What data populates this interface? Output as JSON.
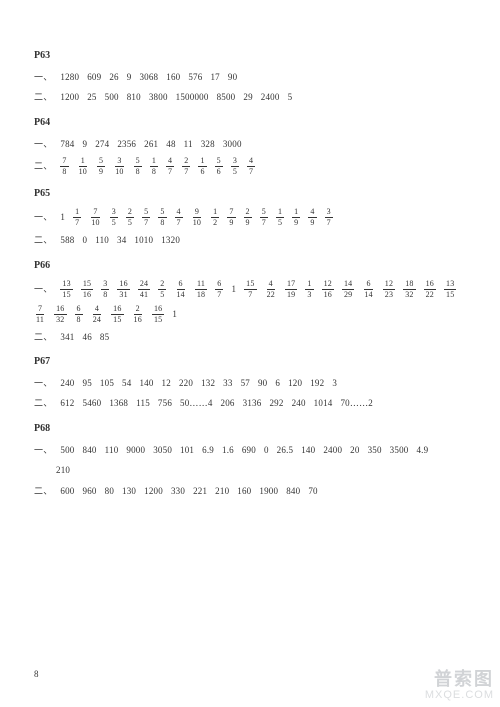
{
  "pageNumber": "8",
  "watermark": {
    "top": "普索图",
    "bottom": "MXQE.COM"
  },
  "sections": [
    {
      "heading": "P63",
      "rows": [
        {
          "prefix": "一、",
          "items": [
            "1280",
            "609",
            "26",
            "9",
            "3068",
            "160",
            "576",
            "17",
            "90"
          ]
        },
        {
          "prefix": "二、",
          "items": [
            "1200",
            "25",
            "500",
            "810",
            "3800",
            "1500000",
            "8500",
            "29",
            "2400",
            "5"
          ]
        }
      ]
    },
    {
      "heading": "P64",
      "rows": [
        {
          "prefix": "一、",
          "items": [
            "784",
            "9",
            "274",
            "2356",
            "261",
            "48",
            "11",
            "328",
            "3000"
          ]
        },
        {
          "prefix": "二、",
          "items": [
            {
              "f": [
                7,
                8
              ]
            },
            {
              "f": [
                1,
                10
              ]
            },
            {
              "f": [
                5,
                9
              ]
            },
            {
              "f": [
                3,
                10
              ]
            },
            {
              "f": [
                5,
                8
              ]
            },
            {
              "f": [
                1,
                8
              ]
            },
            {
              "f": [
                4,
                7
              ]
            },
            {
              "f": [
                2,
                7
              ]
            },
            {
              "f": [
                1,
                6
              ]
            },
            {
              "f": [
                5,
                6
              ]
            },
            {
              "f": [
                3,
                5
              ]
            },
            {
              "f": [
                4,
                7
              ]
            }
          ]
        }
      ]
    },
    {
      "heading": "P65",
      "rows": [
        {
          "prefix": "一、",
          "items": [
            "1",
            {
              "f": [
                1,
                7
              ]
            },
            {
              "f": [
                7,
                10
              ]
            },
            {
              "f": [
                3,
                5
              ]
            },
            {
              "f": [
                2,
                5
              ]
            },
            {
              "f": [
                5,
                7
              ]
            },
            {
              "f": [
                5,
                8
              ]
            },
            {
              "f": [
                4,
                7
              ]
            },
            {
              "f": [
                9,
                10
              ]
            },
            {
              "f": [
                1,
                2
              ]
            },
            {
              "f": [
                7,
                9
              ]
            },
            {
              "f": [
                2,
                9
              ]
            },
            {
              "f": [
                5,
                7
              ]
            },
            {
              "f": [
                1,
                5
              ]
            },
            {
              "f": [
                1,
                9
              ]
            },
            {
              "f": [
                4,
                9
              ]
            },
            {
              "f": [
                3,
                7
              ]
            }
          ]
        },
        {
          "prefix": "二、",
          "items": [
            "588",
            "0",
            "110",
            "34",
            "1010",
            "1320"
          ]
        }
      ]
    },
    {
      "heading": "P66",
      "rows": [
        {
          "prefix": "一、",
          "items": [
            {
              "f": [
                13,
                15
              ]
            },
            {
              "f": [
                15,
                16
              ]
            },
            {
              "f": [
                3,
                8
              ]
            },
            {
              "f": [
                16,
                31
              ]
            },
            {
              "f": [
                24,
                41
              ]
            },
            {
              "f": [
                2,
                5
              ]
            },
            {
              "f": [
                6,
                14
              ]
            },
            {
              "f": [
                11,
                18
              ]
            },
            {
              "f": [
                6,
                7
              ]
            },
            "1",
            {
              "f": [
                15,
                7
              ]
            },
            {
              "f": [
                4,
                22
              ]
            },
            {
              "f": [
                17,
                19
              ]
            },
            {
              "f": [
                1,
                3
              ]
            },
            {
              "f": [
                12,
                16
              ]
            },
            {
              "f": [
                14,
                29
              ]
            },
            {
              "f": [
                6,
                14
              ]
            },
            {
              "f": [
                12,
                23
              ]
            },
            {
              "f": [
                18,
                32
              ]
            },
            {
              "f": [
                16,
                22
              ]
            },
            {
              "f": [
                13,
                15
              ]
            }
          ]
        },
        {
          "prefix": "",
          "items": [
            {
              "f": [
                7,
                11
              ]
            },
            {
              "f": [
                16,
                32
              ]
            },
            {
              "f": [
                6,
                8
              ]
            },
            {
              "f": [
                4,
                24
              ]
            },
            {
              "f": [
                16,
                15
              ]
            },
            {
              "f": [
                2,
                16
              ]
            },
            {
              "f": [
                16,
                15
              ]
            },
            "1"
          ]
        },
        {
          "prefix": "二、",
          "items": [
            "341",
            "46",
            "85"
          ]
        }
      ]
    },
    {
      "heading": "P67",
      "rows": [
        {
          "prefix": "一、",
          "items": [
            "240",
            "95",
            "105",
            "54",
            "140",
            "12",
            "220",
            "132",
            "33",
            "57",
            "90",
            "6",
            "120",
            "192",
            "3"
          ]
        },
        {
          "prefix": "二、",
          "items": [
            "612",
            "5460",
            "1368",
            "115",
            "756",
            "50……4",
            "206",
            "3136",
            "292",
            "240",
            "1014",
            "70……2"
          ]
        }
      ]
    },
    {
      "heading": "P68",
      "rows": [
        {
          "prefix": "一、",
          "items": [
            "500",
            "840",
            "110",
            "9000",
            "3050",
            "101",
            "6.9",
            "1.6",
            "690",
            "0",
            "26.5",
            "140",
            "2400",
            "20",
            "350",
            "3500",
            "4.9"
          ]
        },
        {
          "prefix": "",
          "items": [
            "210"
          ],
          "indent": true
        },
        {
          "prefix": "二、",
          "items": [
            "600",
            "960",
            "80",
            "130",
            "1200",
            "330",
            "221",
            "210",
            "160",
            "1900",
            "840",
            "70"
          ]
        }
      ]
    }
  ],
  "style": {
    "bg": "#ffffff",
    "text": "#333333",
    "fontSizeBody": 9,
    "fontSizeHeading": 10,
    "fontSizeFraction": 8,
    "rowGapPx": 8
  }
}
